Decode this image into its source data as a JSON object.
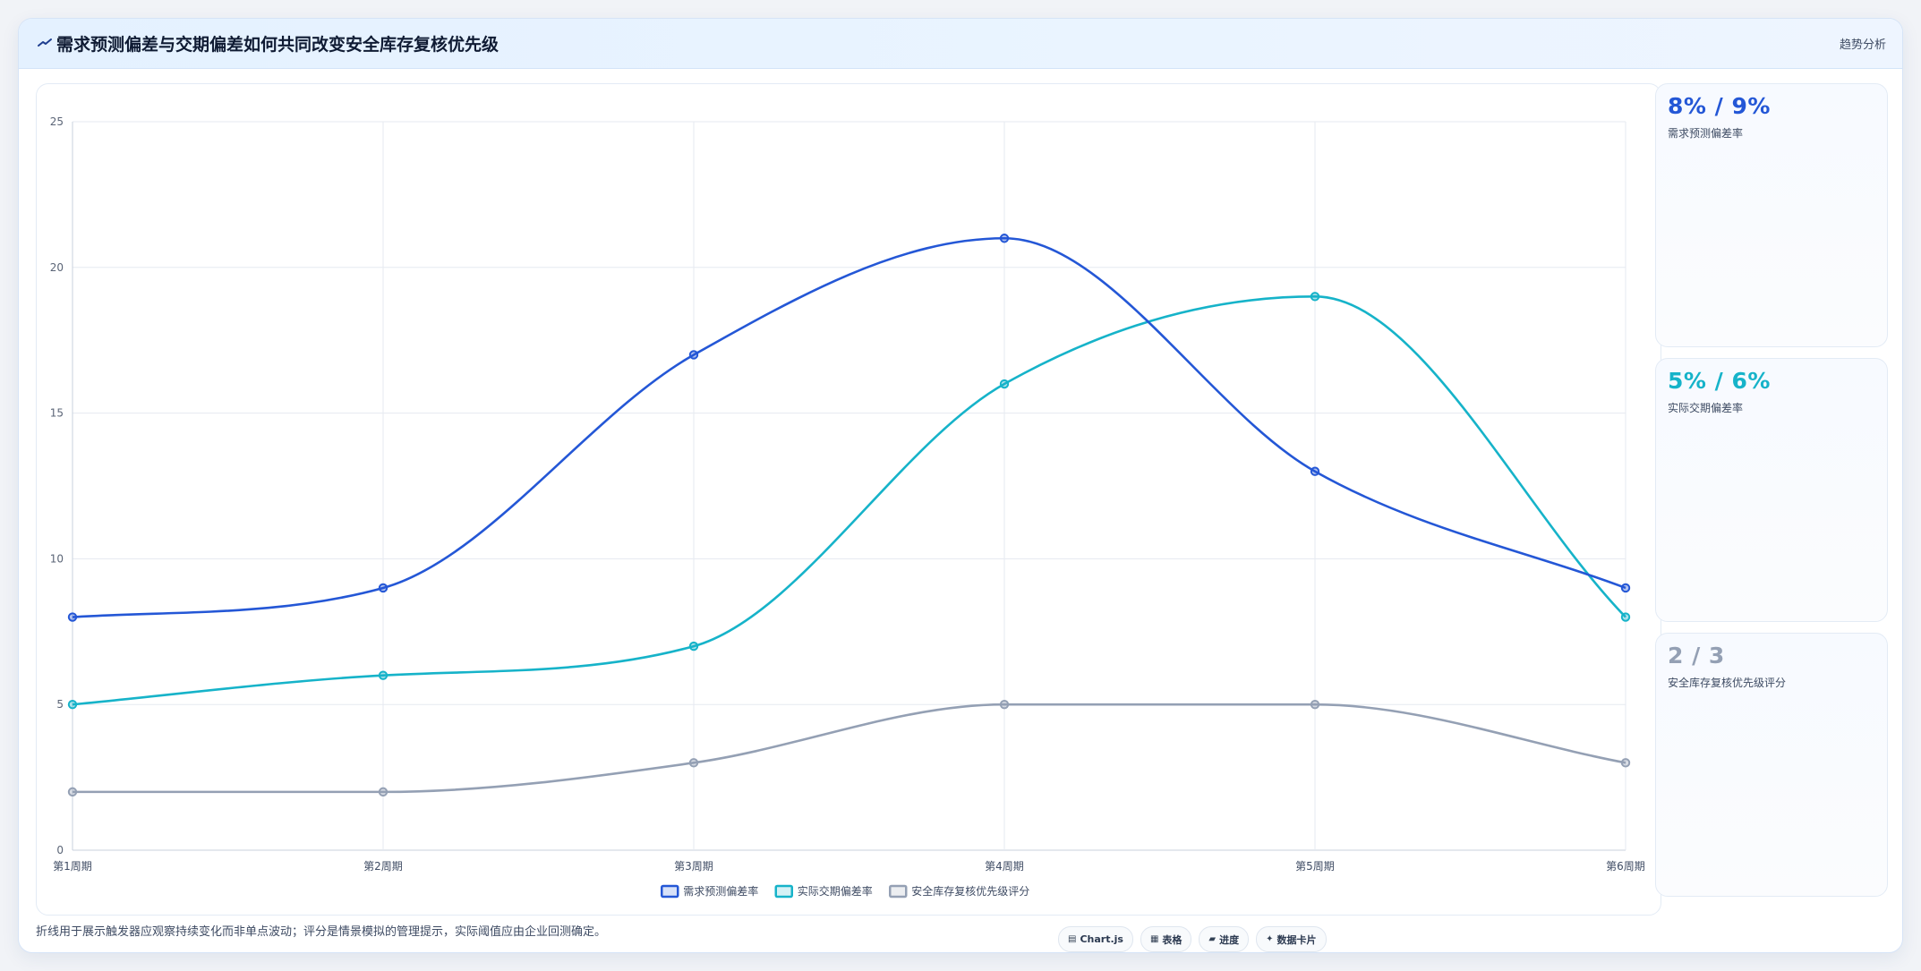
{
  "header": {
    "title": "需求预测偏差与交期偏差如何共同改变安全库存复核优先级",
    "tag": "趋势分析",
    "icon": "trend-line-icon"
  },
  "kpis": [
    {
      "value": "8% / 9%",
      "label": "需求预测偏差率",
      "color": "#2457d6"
    },
    {
      "value": "5% / 6%",
      "label": "实际交期偏差率",
      "color": "#16b3c9"
    },
    {
      "value": "2 / 3",
      "label": "安全库存复核优先级评分",
      "color": "#94a0b4"
    }
  ],
  "footer": {
    "note": "折线用于展示触发器应观察持续变化而非单点波动；评分是情景模拟的管理提示，实际阈值应由企业回测确定。",
    "chips": [
      {
        "icon": "chart-icon",
        "glyph": "▤",
        "label": "Chart.js"
      },
      {
        "icon": "table-icon",
        "glyph": "▦",
        "label": "表格"
      },
      {
        "icon": "progress-icon",
        "glyph": "▰",
        "label": "进度"
      },
      {
        "icon": "sparkle-icon",
        "glyph": "✦",
        "label": "数据卡片"
      }
    ]
  },
  "chart_data": {
    "type": "line",
    "categories": [
      "第1周期",
      "第2周期",
      "第3周期",
      "第4周期",
      "第5周期",
      "第6周期"
    ],
    "series": [
      {
        "name": "需求预测偏差率",
        "values": [
          8,
          9,
          17,
          21,
          13,
          9
        ],
        "color": "#2457d6"
      },
      {
        "name": "实际交期偏差率",
        "values": [
          5,
          6,
          7,
          16,
          19,
          8
        ],
        "color": "#16b3c9"
      },
      {
        "name": "安全库存复核优先级评分",
        "values": [
          2,
          2,
          3,
          5,
          5,
          3
        ],
        "color": "#94a0b4"
      }
    ],
    "ylim": [
      0,
      25
    ],
    "yticks": [
      "0",
      "5",
      "10",
      "15",
      "20",
      "25"
    ],
    "grid": true,
    "legend": "bottom",
    "smooth": true
  }
}
